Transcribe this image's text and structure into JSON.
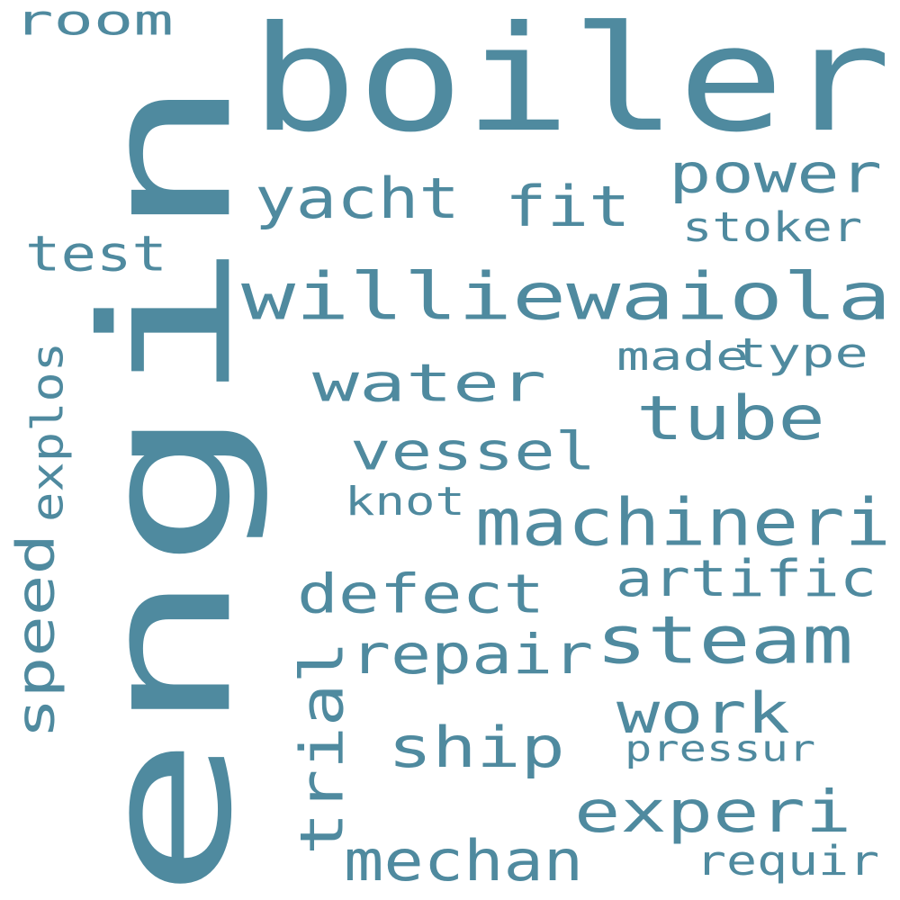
{
  "colors": {
    "background": "#ffffff",
    "word": "#4f8a9f"
  },
  "words": [
    "engin",
    "boiler",
    "williewaiola",
    "power",
    "yacht",
    "fit",
    "stoker",
    "test",
    "room",
    "water",
    "tube",
    "made",
    "type",
    "vessel",
    "explos",
    "knot",
    "machineri",
    "speed",
    "artific",
    "defect",
    "steam",
    "repair",
    "trial",
    "work",
    "ship",
    "pressur",
    "experi",
    "mechan",
    "requir"
  ]
}
